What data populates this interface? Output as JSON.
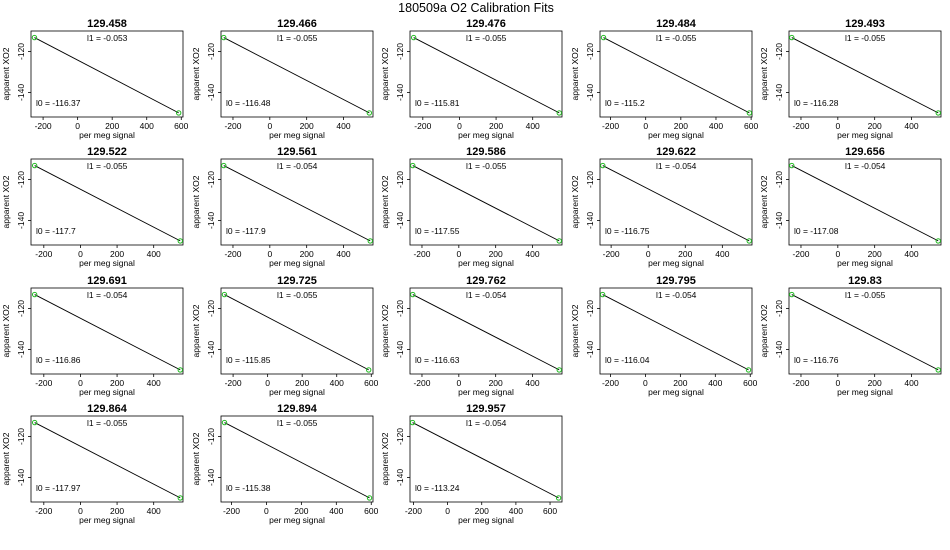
{
  "figure": {
    "title": "180509a   O2 Calibration Fits",
    "xlabel": "per meg signal",
    "ylabel": "apparent XO2",
    "y_ticks": [
      -120,
      -140
    ],
    "ylim": [
      -152,
      -110
    ],
    "fit_color": "#000000",
    "point_color": "#22bb22"
  },
  "chart_data": [
    {
      "type": "scatter",
      "title": "129.458",
      "l1": "l1 =  -0.053",
      "l0": "l0 =  -116.37",
      "xlim": [
        -270,
        610
      ],
      "x_ticks": [
        -200,
        0,
        200,
        400,
        600
      ],
      "points": [
        [
          -250,
          -113.2
        ],
        [
          585,
          -150.0
        ]
      ]
    },
    {
      "type": "scatter",
      "title": "129.466",
      "l1": "l1 =  -0.055",
      "l0": "l0 =  -116.48",
      "xlim": [
        -265,
        560
      ],
      "x_ticks": [
        -200,
        0,
        200,
        400
      ],
      "points": [
        [
          -250,
          -113.2
        ],
        [
          540,
          -150.0
        ]
      ]
    },
    {
      "type": "scatter",
      "title": "129.476",
      "l1": "l1 =  -0.055",
      "l0": "l0 =  -115.81",
      "xlim": [
        -270,
        560
      ],
      "x_ticks": [
        -200,
        0,
        200,
        400
      ],
      "points": [
        [
          -250,
          -113.2
        ],
        [
          545,
          -150.0
        ]
      ]
    },
    {
      "type": "scatter",
      "title": "129.484",
      "l1": "l1 =  -0.055",
      "l0": "l0 =  -115.2",
      "xlim": [
        -260,
        605
      ],
      "x_ticks": [
        -200,
        0,
        200,
        400,
        600
      ],
      "points": [
        [
          -240,
          -113.2
        ],
        [
          590,
          -150.0
        ]
      ]
    },
    {
      "type": "scatter",
      "title": "129.493",
      "l1": "l1 =  -0.055",
      "l0": "l0 =  -116.28",
      "xlim": [
        -265,
        560
      ],
      "x_ticks": [
        -200,
        0,
        200,
        400
      ],
      "points": [
        [
          -250,
          -113.2
        ],
        [
          545,
          -150.0
        ]
      ]
    },
    {
      "type": "scatter",
      "title": "129.522",
      "l1": "l1 =  -0.055",
      "l0": "l0 =  -117.7",
      "xlim": [
        -270,
        560
      ],
      "x_ticks": [
        -200,
        0,
        200,
        400
      ],
      "points": [
        [
          -250,
          -113.2
        ],
        [
          545,
          -150.0
        ]
      ]
    },
    {
      "type": "scatter",
      "title": "129.561",
      "l1": "l1 =  -0.054",
      "l0": "l0 =  -117.9",
      "xlim": [
        -265,
        560
      ],
      "x_ticks": [
        -200,
        0,
        200,
        400
      ],
      "points": [
        [
          -250,
          -113.2
        ],
        [
          545,
          -150.0
        ]
      ]
    },
    {
      "type": "scatter",
      "title": "129.586",
      "l1": "l1 =  -0.055",
      "l0": "l0 =  -117.55",
      "xlim": [
        -265,
        560
      ],
      "x_ticks": [
        -200,
        0,
        200,
        400
      ],
      "points": [
        [
          -250,
          -113.2
        ],
        [
          545,
          -150.0
        ]
      ]
    },
    {
      "type": "scatter",
      "title": "129.622",
      "l1": "l1 =  -0.054",
      "l0": "l0 =  -116.75",
      "xlim": [
        -260,
        560
      ],
      "x_ticks": [
        -200,
        0,
        200,
        400
      ],
      "points": [
        [
          -245,
          -113.2
        ],
        [
          545,
          -150.0
        ]
      ]
    },
    {
      "type": "scatter",
      "title": "129.656",
      "l1": "l1 =  -0.054",
      "l0": "l0 =  -117.08",
      "xlim": [
        -265,
        560
      ],
      "x_ticks": [
        -200,
        0,
        200,
        400
      ],
      "points": [
        [
          -250,
          -113.2
        ],
        [
          545,
          -150.0
        ]
      ]
    },
    {
      "type": "scatter",
      "title": "129.691",
      "l1": "l1 =  -0.054",
      "l0": "l0 =  -116.86",
      "xlim": [
        -270,
        560
      ],
      "x_ticks": [
        -200,
        0,
        200,
        400
      ],
      "points": [
        [
          -250,
          -113.2
        ],
        [
          545,
          -150.0
        ]
      ]
    },
    {
      "type": "scatter",
      "title": "129.725",
      "l1": "l1 =  -0.055",
      "l0": "l0 =  -115.85",
      "xlim": [
        -270,
        610
      ],
      "x_ticks": [
        -200,
        0,
        200,
        400,
        600
      ],
      "points": [
        [
          -250,
          -113.2
        ],
        [
          585,
          -150.0
        ]
      ]
    },
    {
      "type": "scatter",
      "title": "129.762",
      "l1": "l1 =  -0.054",
      "l0": "l0 =  -116.63",
      "xlim": [
        -265,
        560
      ],
      "x_ticks": [
        -200,
        0,
        200,
        400
      ],
      "points": [
        [
          -250,
          -113.2
        ],
        [
          545,
          -150.0
        ]
      ]
    },
    {
      "type": "scatter",
      "title": "129.795",
      "l1": "l1 =  -0.054",
      "l0": "l0 =  -116.04",
      "xlim": [
        -260,
        610
      ],
      "x_ticks": [
        -200,
        0,
        200,
        400,
        600
      ],
      "points": [
        [
          -245,
          -113.2
        ],
        [
          590,
          -150.0
        ]
      ]
    },
    {
      "type": "scatter",
      "title": "129.83",
      "l1": "l1 =  -0.055",
      "l0": "l0 =  -116.76",
      "xlim": [
        -265,
        560
      ],
      "x_ticks": [
        -200,
        0,
        200,
        400
      ],
      "points": [
        [
          -250,
          -113.2
        ],
        [
          545,
          -150.0
        ]
      ]
    },
    {
      "type": "scatter",
      "title": "129.864",
      "l1": "l1 =  -0.055",
      "l0": "l0 =  -117.97",
      "xlim": [
        -270,
        560
      ],
      "x_ticks": [
        -200,
        0,
        200,
        400
      ],
      "points": [
        [
          -250,
          -113.2
        ],
        [
          545,
          -150.0
        ]
      ]
    },
    {
      "type": "scatter",
      "title": "129.894",
      "l1": "l1 =  -0.055",
      "l0": "l0 =  -115.38",
      "xlim": [
        -260,
        610
      ],
      "x_ticks": [
        -200,
        0,
        200,
        400,
        600
      ],
      "points": [
        [
          -240,
          -113.2
        ],
        [
          590,
          -150.0
        ]
      ]
    },
    {
      "type": "scatter",
      "title": "129.957",
      "l1": "l1 =  -0.054",
      "l0": "l0 =  -113.24",
      "xlim": [
        -220,
        670
      ],
      "x_ticks": [
        -200,
        0,
        200,
        400,
        600
      ],
      "points": [
        [
          -205,
          -113.2
        ],
        [
          650,
          -150.0
        ]
      ]
    }
  ]
}
